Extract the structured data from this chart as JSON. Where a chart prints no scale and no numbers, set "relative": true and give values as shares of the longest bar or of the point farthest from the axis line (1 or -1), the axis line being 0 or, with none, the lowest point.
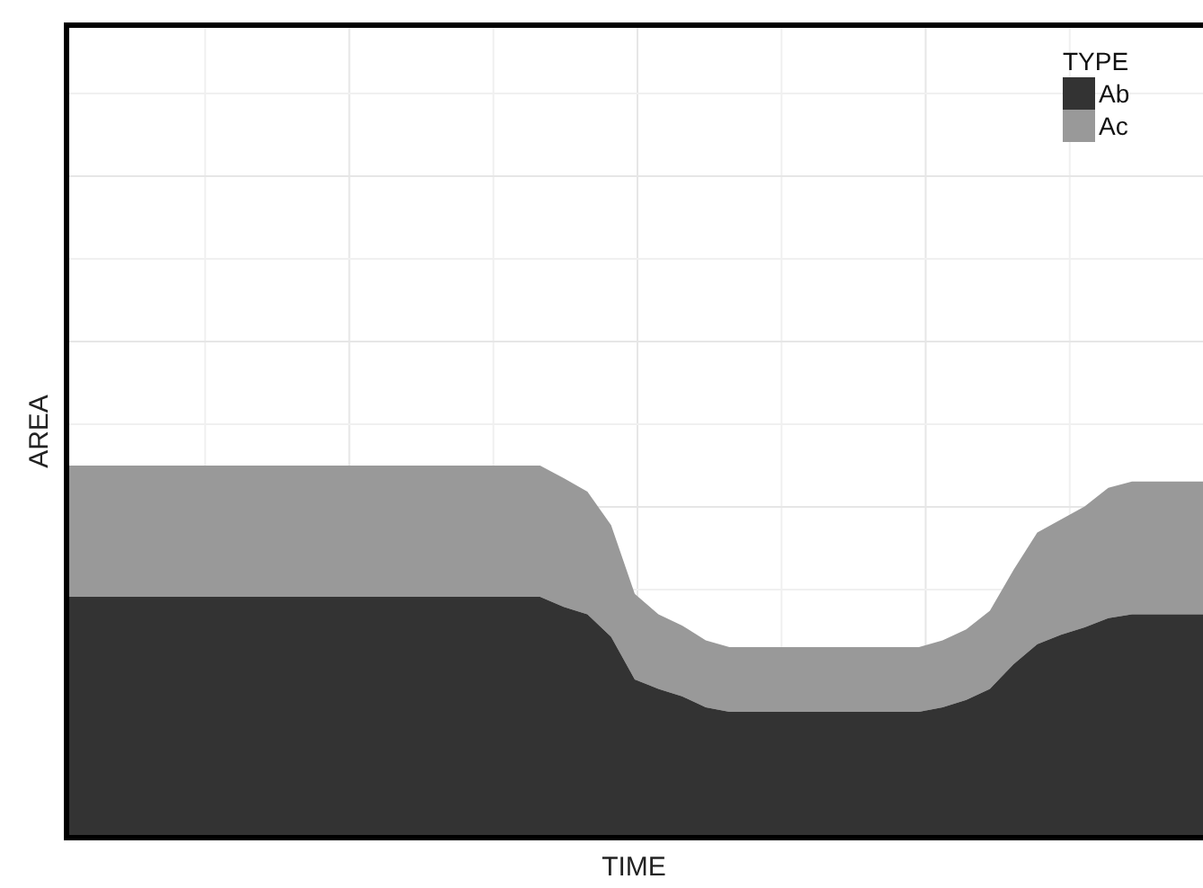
{
  "chart_data": {
    "type": "area",
    "xlabel": "TIME",
    "ylabel": "AREA",
    "legend_title": "TYPE",
    "legend": "top right",
    "grid": true,
    "relative": true,
    "stacked": true,
    "categories": [
      null,
      null,
      null,
      null,
      null,
      null,
      null,
      null,
      null,
      null,
      null,
      null,
      null,
      null,
      null,
      null,
      null,
      null,
      null,
      null,
      null,
      null,
      null,
      null,
      null,
      null,
      null,
      null,
      null,
      null,
      null,
      null,
      null,
      null,
      null,
      null,
      null,
      null,
      null,
      null,
      null,
      null,
      null,
      null,
      null,
      null,
      null,
      null,
      null
    ],
    "series": [
      {
        "name": "Ab",
        "color": "#333333",
        "values": [
          0.647,
          0.647,
          0.647,
          0.647,
          0.647,
          0.647,
          0.647,
          0.647,
          0.647,
          0.647,
          0.647,
          0.647,
          0.647,
          0.647,
          0.647,
          0.647,
          0.647,
          0.647,
          0.647,
          0.647,
          0.647,
          0.62,
          0.6,
          0.54,
          0.425,
          0.4,
          0.38,
          0.35,
          0.338,
          0.338,
          0.338,
          0.338,
          0.338,
          0.338,
          0.338,
          0.338,
          0.338,
          0.35,
          0.37,
          0.4,
          0.466,
          0.52,
          0.545,
          0.565,
          0.59,
          0.6,
          0.6,
          0.6,
          0.6
        ]
      },
      {
        "name": "Ac",
        "color": "#999999",
        "values": [
          0.353,
          0.353,
          0.353,
          0.353,
          0.353,
          0.353,
          0.353,
          0.353,
          0.353,
          0.353,
          0.353,
          0.353,
          0.353,
          0.353,
          0.353,
          0.353,
          0.353,
          0.353,
          0.353,
          0.353,
          0.353,
          0.346,
          0.33,
          0.3,
          0.23,
          0.2,
          0.19,
          0.18,
          0.174,
          0.174,
          0.174,
          0.174,
          0.174,
          0.174,
          0.174,
          0.174,
          0.174,
          0.18,
          0.19,
          0.21,
          0.254,
          0.3,
          0.31,
          0.325,
          0.35,
          0.357,
          0.357,
          0.357,
          0.357
        ]
      }
    ]
  }
}
